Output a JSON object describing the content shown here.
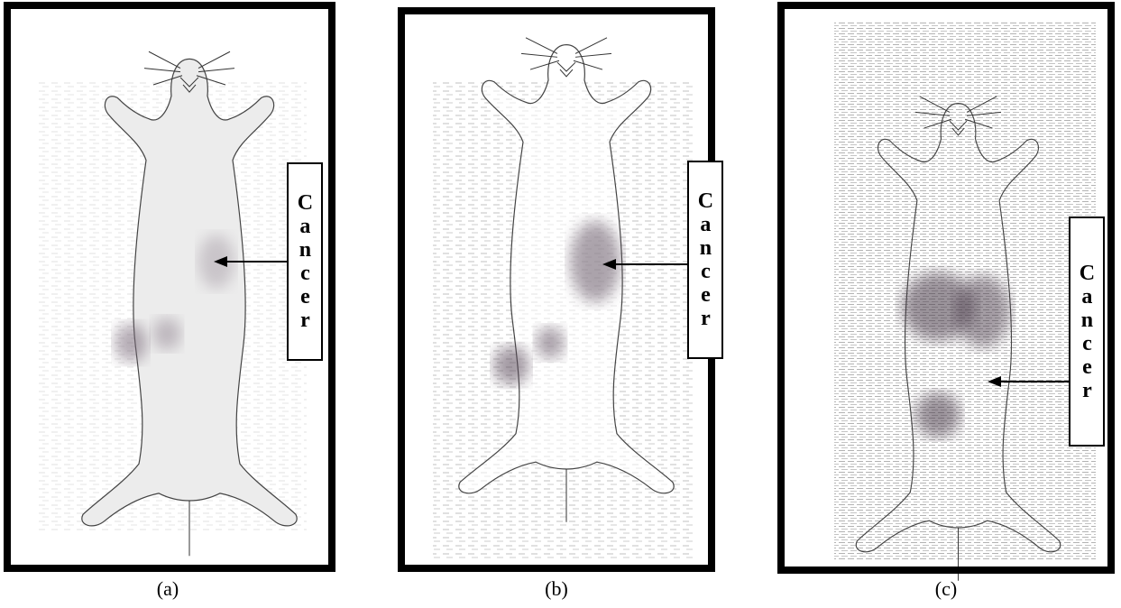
{
  "panels": [
    {
      "label": "(a)",
      "annotation": "Cancer"
    },
    {
      "label": "(b)",
      "annotation": "Cancer"
    },
    {
      "label": "(c)",
      "annotation": "Cancer"
    }
  ]
}
